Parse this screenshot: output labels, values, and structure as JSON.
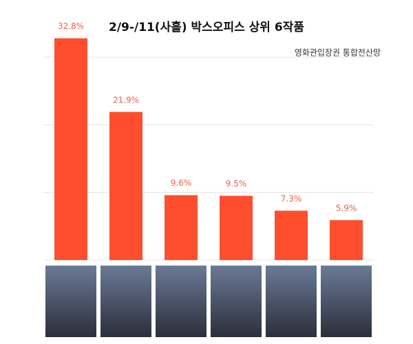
{
  "chart_data": {
    "type": "bar",
    "title": "2/9-/11(사흘) 박스오피스 상위 6작품",
    "subtitle": "영화관입장권 통합전산망",
    "categories": [
      null,
      null,
      null,
      null,
      null,
      null
    ],
    "values": [
      32.8,
      21.9,
      9.6,
      9.5,
      7.3,
      5.9
    ],
    "value_labels": [
      "32.8%",
      "21.9%",
      "9.6%",
      "9.5%",
      "7.3%",
      "5.9%"
    ],
    "color": "#ff4e2e",
    "ylim": [
      0,
      35
    ],
    "yticks": [
      0,
      10,
      20,
      30
    ],
    "grid": true
  }
}
